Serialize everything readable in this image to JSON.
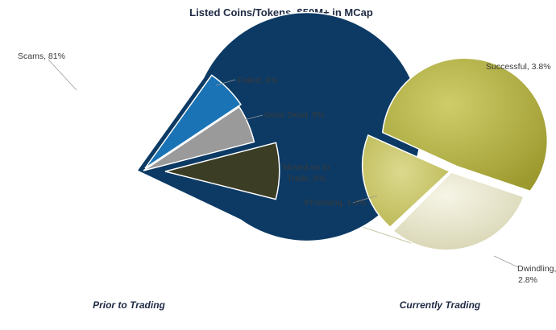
{
  "chart_data": [
    {
      "type": "pie",
      "title": "Listed Coins/Tokens, $50M+  in MCap",
      "caption": "Prior to Trading",
      "unit": "%",
      "slices": [
        {
          "label": "Scams, 81%",
          "value": 81,
          "color": "#0c3a64"
        },
        {
          "label": "Failed, 6%",
          "value": 6,
          "color": "#1a73b5"
        },
        {
          "label": "Gone Dead, 5%",
          "value": 5,
          "color": "#9a9a9a"
        },
        {
          "label": "Moved on to Trade, 8%",
          "label_lines": [
            "Moved on to",
            "Trade, 8%"
          ],
          "value": 8,
          "color": "#3b3d24",
          "exploded": true
        }
      ]
    },
    {
      "type": "pie",
      "caption": "Currently Trading",
      "breakdown_of": "Moved on to Trade, 8%",
      "unit": "%",
      "slices": [
        {
          "label": "Successful, 3.8%",
          "value": 3.8,
          "color": "#a7a63a"
        },
        {
          "label": "Dwindling, 2.8%",
          "label_lines": [
            "Dwindling,",
            "2.8%"
          ],
          "value": 2.8,
          "color": "#e6e4cc"
        },
        {
          "label": "Promising, 1.6%",
          "value": 1.6,
          "color": "#c9c56a",
          "exploded": true
        }
      ]
    }
  ]
}
